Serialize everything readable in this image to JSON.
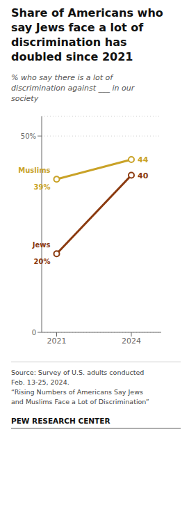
{
  "chart_data": {
    "type": "line",
    "title": "Share of Americans who\nsay Jews face a lot of\ndiscrimination has\ndoubled since 2021",
    "subtitle": "% who say there is a lot of discrimination against ___ in our society",
    "x": [
      2021,
      2024
    ],
    "series": [
      {
        "name": "Muslims",
        "color": "#C9A227",
        "values": [
          39,
          44
        ],
        "value_labels": [
          "39%",
          "44"
        ]
      },
      {
        "name": "Jews",
        "color": "#8B3A0F",
        "values": [
          20,
          40
        ],
        "value_labels": [
          "20%",
          "40"
        ]
      }
    ],
    "xlim": [
      2020.4,
      2025.2
    ],
    "xticks": [
      2021,
      2024
    ],
    "ylim": [
      0,
      55
    ],
    "yticks": [
      0,
      {
        "value": 50,
        "label": "50%"
      }
    ],
    "grid": true,
    "marker": "circle",
    "data_labels": true,
    "annotations": [
      "Source: Survey of U.S. adults conducted\nFeb. 13-25, 2024.\n“Rising Numbers of Americans Say Jews\nand Muslims Face a Lot of Discrimination”",
      "PEW RESEARCH CENTER"
    ]
  }
}
